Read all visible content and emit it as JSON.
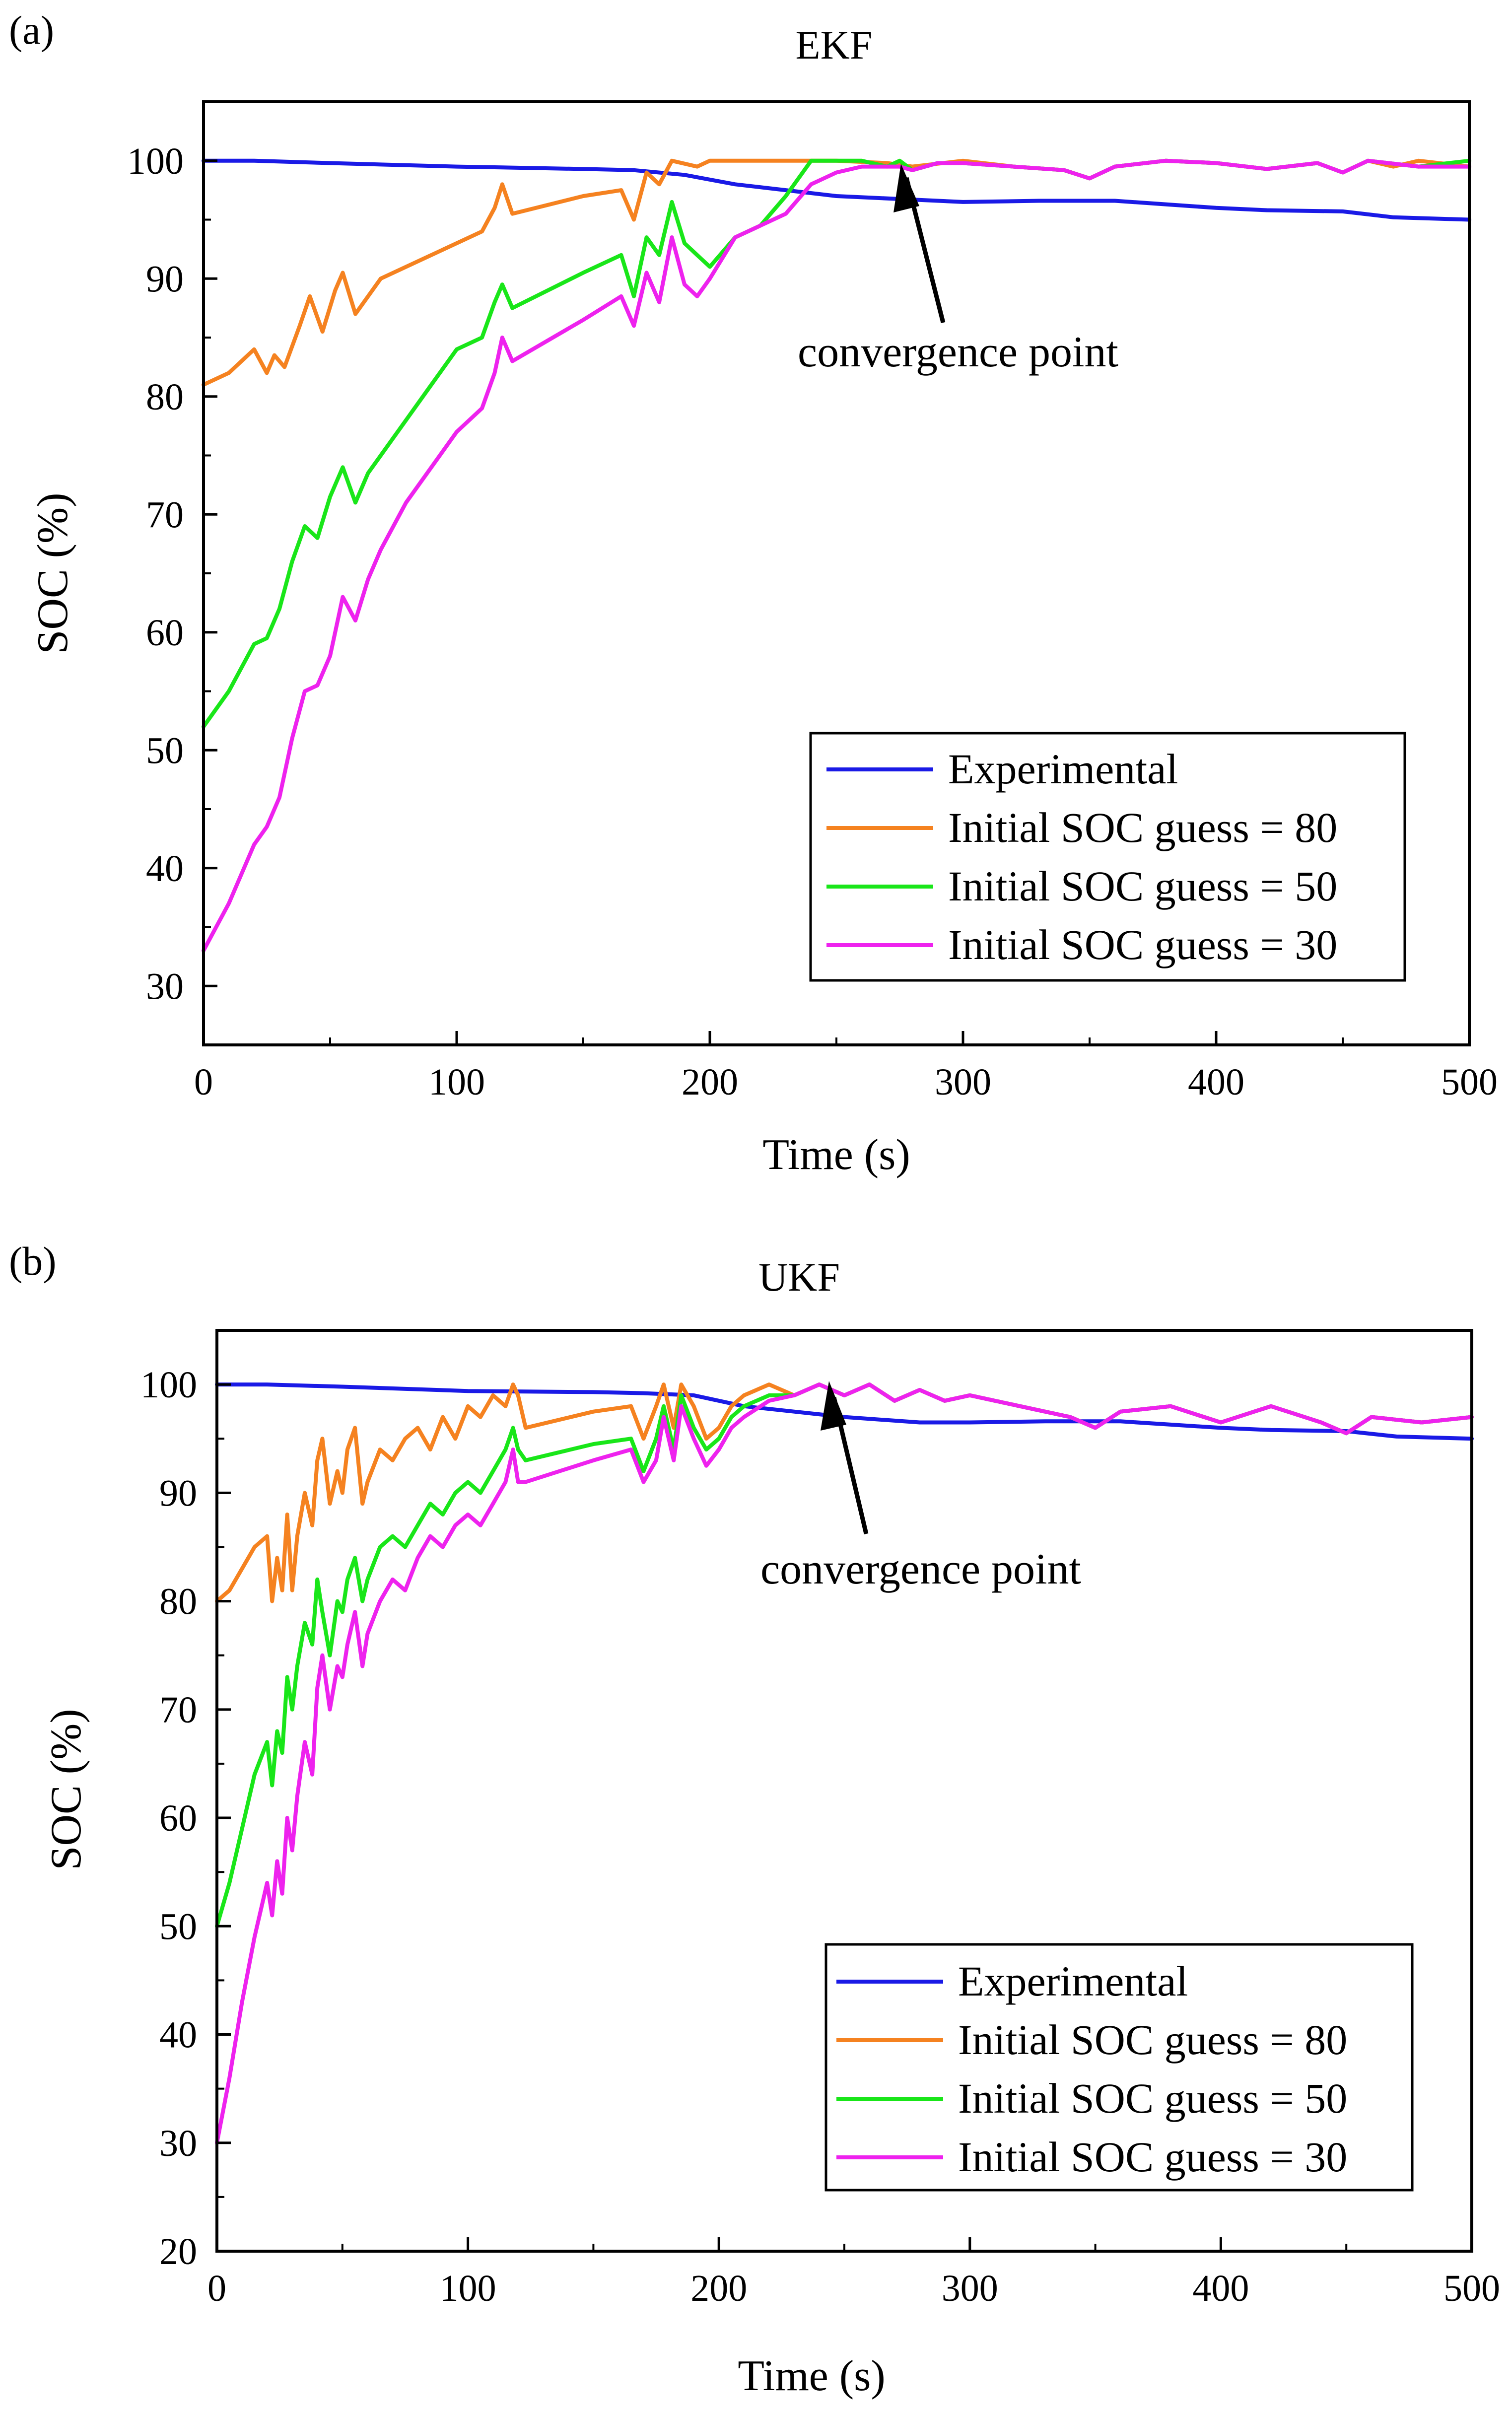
{
  "colors": {
    "experimental": "#1a1ae6",
    "guess80": "#f58220",
    "guess50": "#19e619",
    "guess30": "#ee22ee",
    "annotation": "#000000"
  },
  "chart_data": [
    {
      "type": "line",
      "panel_label": "(a)",
      "title": "EKF",
      "xlabel": "Time (s)",
      "ylabel": "SOC (%)",
      "xlim": [
        0,
        500
      ],
      "ylim": [
        25,
        105
      ],
      "xticks": [
        0,
        100,
        200,
        300,
        400,
        500
      ],
      "yticks": [
        30,
        40,
        50,
        60,
        70,
        80,
        90,
        100
      ],
      "legend_position": "bottom-right",
      "grid": false,
      "annotation": {
        "text": "convergence point",
        "x": 275,
        "y": 99.2
      },
      "series": [
        {
          "name": "Experimental",
          "color_key": "experimental",
          "x": [
            0,
            20,
            50,
            100,
            150,
            170,
            190,
            210,
            230,
            250,
            280,
            300,
            330,
            360,
            380,
            400,
            420,
            450,
            470,
            500
          ],
          "y": [
            100,
            100,
            99.8,
            99.5,
            99.3,
            99.2,
            98.8,
            98,
            97.5,
            97,
            96.7,
            96.5,
            96.6,
            96.6,
            96.3,
            96,
            95.8,
            95.7,
            95.2,
            95
          ]
        },
        {
          "name": "Initial SOC guess = 80",
          "color_key": "guess80",
          "x": [
            0,
            10,
            20,
            25,
            28,
            32,
            38,
            42,
            47,
            52,
            55,
            60,
            65,
            70,
            75,
            80,
            90,
            100,
            110,
            115,
            118,
            122,
            150,
            165,
            170,
            175,
            180,
            185,
            195,
            200,
            210,
            230,
            250,
            270,
            280,
            300,
            320,
            340,
            350,
            360,
            380,
            400,
            420,
            440,
            450,
            460,
            470,
            480,
            500
          ],
          "y": [
            81,
            82,
            84,
            82,
            83.5,
            82.5,
            86,
            88.5,
            85.5,
            89,
            90.5,
            87,
            88.5,
            90,
            90.5,
            91,
            92,
            93,
            94,
            96,
            98,
            95.5,
            97,
            97.5,
            95,
            99,
            98,
            100,
            99.5,
            100,
            100,
            100,
            100,
            99.8,
            99.5,
            100,
            99.5,
            99.2,
            98.5,
            99.5,
            100,
            99.8,
            99.3,
            99.8,
            99,
            100,
            99.5,
            100,
            99.5
          ]
        },
        {
          "name": "Initial SOC guess = 50",
          "color_key": "guess50",
          "x": [
            0,
            10,
            20,
            25,
            30,
            35,
            40,
            45,
            50,
            55,
            60,
            65,
            70,
            80,
            90,
            100,
            110,
            115,
            118,
            122,
            150,
            165,
            170,
            175,
            180,
            185,
            190,
            195,
            200,
            210,
            220,
            230,
            240,
            250,
            260,
            270,
            275,
            280,
            290,
            300,
            320,
            340,
            350,
            360,
            380,
            400,
            420,
            440,
            450,
            460,
            480,
            500
          ],
          "y": [
            52,
            55,
            59,
            59.5,
            62,
            66,
            69,
            68,
            71.5,
            74,
            71,
            73.5,
            75,
            78,
            81,
            84,
            85,
            88,
            89.5,
            87.5,
            90.5,
            92,
            88.5,
            93.5,
            92,
            96.5,
            93,
            92,
            91,
            93.5,
            94.5,
            97,
            100,
            100,
            100,
            99.5,
            100,
            99.2,
            99.8,
            99.8,
            99.5,
            99.2,
            98.5,
            99.5,
            100,
            99.8,
            99.3,
            99.8,
            99,
            100,
            99.5,
            100
          ]
        },
        {
          "name": "Initial SOC guess = 30",
          "color_key": "guess30",
          "x": [
            0,
            10,
            20,
            25,
            30,
            35,
            40,
            45,
            50,
            55,
            60,
            65,
            70,
            80,
            90,
            100,
            110,
            115,
            118,
            122,
            150,
            165,
            170,
            175,
            180,
            185,
            190,
            195,
            200,
            210,
            220,
            230,
            240,
            250,
            260,
            270,
            275,
            280,
            290,
            300,
            320,
            340,
            350,
            360,
            380,
            400,
            420,
            440,
            450,
            460,
            480,
            500
          ],
          "y": [
            33,
            37,
            42,
            43.5,
            46,
            51,
            55,
            55.5,
            58,
            63,
            61,
            64.5,
            67,
            71,
            74,
            77,
            79,
            82,
            85,
            83,
            86.5,
            88.5,
            86,
            90.5,
            88,
            93.5,
            89.5,
            88.5,
            90,
            93.5,
            94.5,
            95.5,
            98,
            99,
            99.5,
            99.5,
            99.5,
            99.2,
            99.8,
            99.8,
            99.5,
            99.2,
            98.5,
            99.5,
            100,
            99.8,
            99.3,
            99.8,
            99,
            100,
            99.5,
            99.5
          ]
        }
      ]
    },
    {
      "type": "line",
      "panel_label": "(b)",
      "title": "UKF",
      "xlabel": "Time (s)",
      "ylabel": "SOC (%)",
      "xlim": [
        0,
        500
      ],
      "ylim": [
        20,
        105
      ],
      "xticks": [
        0,
        100,
        200,
        300,
        400,
        500
      ],
      "yticks": [
        20,
        30,
        40,
        50,
        60,
        70,
        80,
        90,
        100
      ],
      "legend_position": "bottom-right",
      "grid": false,
      "annotation": {
        "text": "convergence point",
        "x": 240,
        "y": 100
      },
      "series": [
        {
          "name": "Experimental",
          "color_key": "experimental",
          "x": [
            0,
            20,
            50,
            100,
            150,
            170,
            190,
            210,
            230,
            250,
            280,
            300,
            330,
            360,
            380,
            400,
            420,
            450,
            470,
            500
          ],
          "y": [
            100,
            100,
            99.8,
            99.4,
            99.3,
            99.2,
            99,
            98,
            97.5,
            97,
            96.5,
            96.5,
            96.6,
            96.6,
            96.3,
            96,
            95.8,
            95.7,
            95.2,
            95
          ]
        },
        {
          "name": "Initial SOC guess = 80",
          "color_key": "guess80",
          "x": [
            0,
            5,
            10,
            15,
            20,
            22,
            24,
            26,
            28,
            30,
            32,
            35,
            38,
            40,
            42,
            45,
            48,
            50,
            52,
            55,
            58,
            60,
            65,
            70,
            75,
            80,
            85,
            90,
            95,
            100,
            105,
            110,
            115,
            118,
            120,
            123,
            150,
            165,
            170,
            175,
            178,
            182,
            185,
            190,
            195,
            200,
            205,
            210,
            220,
            230,
            240,
            250,
            260,
            270,
            280,
            290,
            300,
            320,
            340,
            350,
            360,
            380,
            400,
            420,
            440,
            450,
            460,
            480,
            500
          ],
          "y": [
            80,
            81,
            83,
            85,
            86,
            80,
            84,
            81,
            88,
            81,
            86,
            90,
            87,
            93,
            95,
            89,
            92,
            90,
            94,
            96,
            89,
            91,
            94,
            93,
            95,
            96,
            94,
            97,
            95,
            98,
            97,
            99,
            98,
            100,
            99,
            96,
            97.5,
            98,
            95,
            98,
            100,
            96,
            100,
            98,
            95,
            96,
            98,
            99,
            100,
            99,
            100,
            99,
            100,
            98.5,
            99.5,
            98.5,
            99,
            98,
            97,
            96,
            97.5,
            98,
            96.5,
            98,
            96.5,
            95.5,
            97,
            96.5,
            97
          ]
        },
        {
          "name": "Initial SOC guess = 50",
          "color_key": "guess50",
          "x": [
            0,
            5,
            10,
            15,
            20,
            22,
            24,
            26,
            28,
            30,
            32,
            35,
            38,
            40,
            42,
            45,
            48,
            50,
            52,
            55,
            58,
            60,
            65,
            70,
            75,
            80,
            85,
            90,
            95,
            100,
            105,
            110,
            115,
            118,
            120,
            123,
            150,
            165,
            170,
            175,
            178,
            182,
            185,
            190,
            195,
            200,
            205,
            210,
            220,
            230,
            240,
            250,
            260,
            270,
            280,
            290,
            300,
            320,
            340,
            350,
            360,
            380,
            400,
            420,
            440,
            450,
            460,
            480,
            500
          ],
          "y": [
            50,
            54,
            59,
            64,
            67,
            63,
            68,
            66,
            73,
            70,
            74,
            78,
            76,
            82,
            79,
            75,
            80,
            79,
            82,
            84,
            80,
            82,
            85,
            86,
            85,
            87,
            89,
            88,
            90,
            91,
            90,
            92,
            94,
            96,
            94,
            93,
            94.5,
            95,
            92,
            95,
            98,
            94,
            99,
            96,
            94,
            95,
            97,
            98,
            99,
            99,
            100,
            99,
            100,
            98.5,
            99.5,
            98.5,
            99,
            98,
            97,
            96,
            97.5,
            98,
            96.5,
            98,
            96.5,
            95.5,
            97,
            96.5,
            97
          ]
        },
        {
          "name": "Initial SOC guess = 30",
          "color_key": "guess30",
          "x": [
            0,
            5,
            10,
            15,
            20,
            22,
            24,
            26,
            28,
            30,
            32,
            35,
            38,
            40,
            42,
            45,
            48,
            50,
            52,
            55,
            58,
            60,
            65,
            70,
            75,
            80,
            85,
            90,
            95,
            100,
            105,
            110,
            115,
            118,
            120,
            123,
            150,
            165,
            170,
            175,
            178,
            182,
            185,
            190,
            195,
            200,
            205,
            210,
            220,
            230,
            240,
            250,
            260,
            270,
            280,
            290,
            300,
            320,
            340,
            350,
            360,
            380,
            400,
            420,
            440,
            450,
            460,
            480,
            500
          ],
          "y": [
            30,
            36,
            43,
            49,
            54,
            51,
            56,
            53,
            60,
            57,
            62,
            67,
            64,
            72,
            75,
            70,
            74,
            73,
            76,
            79,
            74,
            77,
            80,
            82,
            81,
            84,
            86,
            85,
            87,
            88,
            87,
            89,
            91,
            94,
            91,
            91,
            93,
            94,
            91,
            93,
            97,
            93,
            98,
            95,
            92.5,
            94,
            96,
            97,
            98.5,
            99,
            100,
            99,
            100,
            98.5,
            99.5,
            98.5,
            99,
            98,
            97,
            96,
            97.5,
            98,
            96.5,
            98,
            96.5,
            95.5,
            97,
            96.5,
            97
          ]
        }
      ]
    }
  ]
}
